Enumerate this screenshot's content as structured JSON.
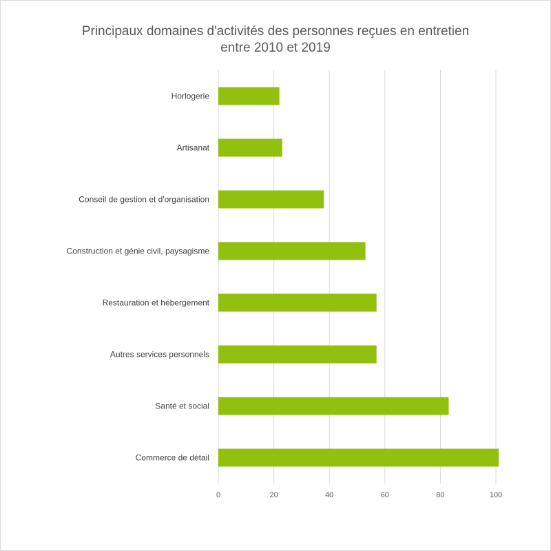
{
  "chart_data": {
    "type": "bar",
    "orientation": "horizontal",
    "title_lines": [
      "Principaux domaines d'activités des personnes reçues en entretien",
      "entre 2010 et 2019"
    ],
    "categories": [
      "Horlogerie",
      "Artisanat",
      "Conseil de gestion et d'organisation",
      "Construction et génie civil, paysagisme",
      "Restauration et hébergement",
      "Autres services personnels",
      "Santé et social",
      "Commerce de détail"
    ],
    "values": [
      22,
      23,
      38,
      53,
      57,
      57,
      83,
      101
    ],
    "xlim": [
      0,
      100
    ],
    "xticks": [
      0,
      20,
      40,
      60,
      80,
      100
    ],
    "grid": true,
    "bar_color": "#92c00e",
    "gridline_color": "#d9d9d9"
  }
}
